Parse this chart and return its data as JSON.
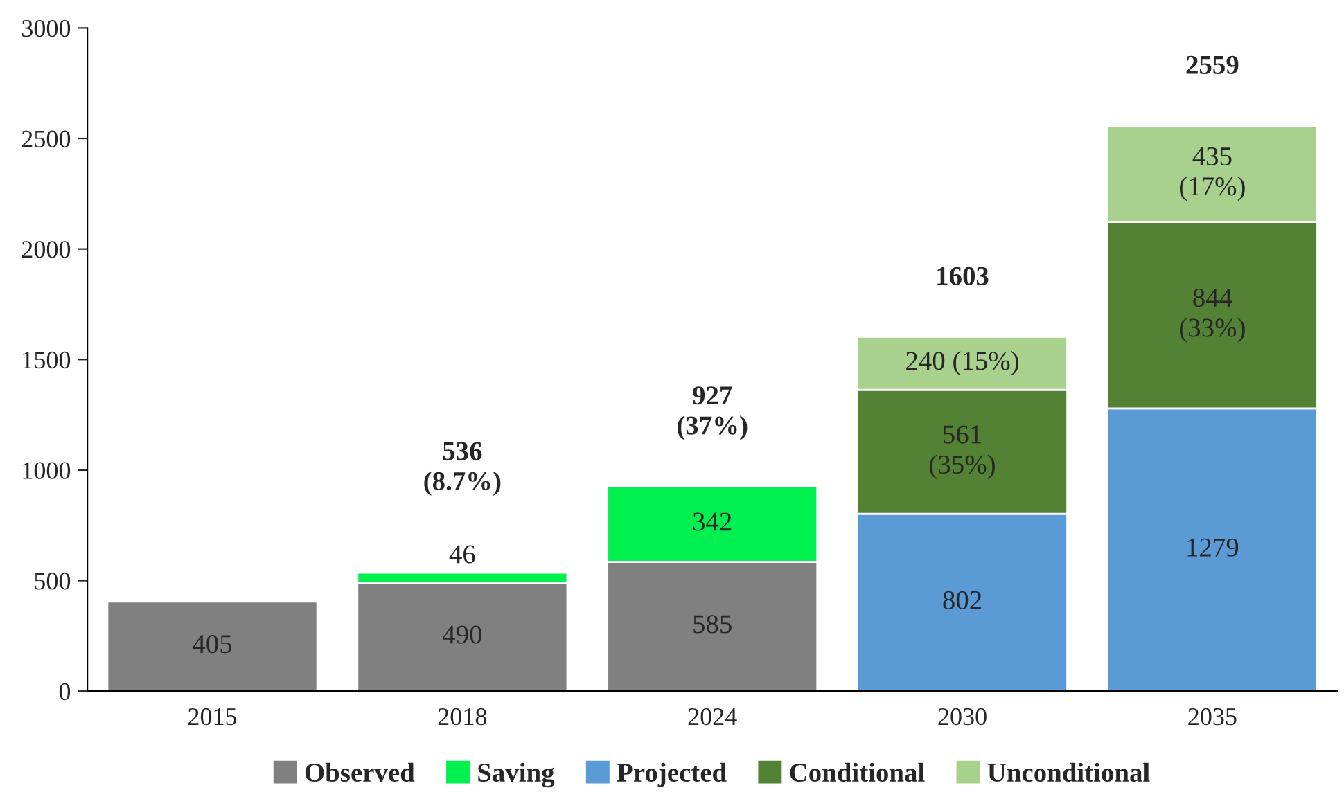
{
  "chart_data": {
    "type": "bar",
    "stacked": true,
    "categories": [
      "2015",
      "2018",
      "2024",
      "2030",
      "2035"
    ],
    "series": [
      {
        "name": "Observed",
        "color": "#808080",
        "values": [
          405,
          490,
          585,
          null,
          null
        ],
        "value_labels": [
          "405",
          "490",
          "585",
          null,
          null
        ]
      },
      {
        "name": "Saving",
        "color": "#00f050",
        "values": [
          null,
          46,
          342,
          null,
          null
        ],
        "value_labels": [
          null,
          "46",
          "342",
          null,
          null
        ]
      },
      {
        "name": "Projected",
        "color": "#5b9bd5",
        "values": [
          null,
          null,
          null,
          802,
          1279
        ],
        "value_labels": [
          null,
          null,
          null,
          "802",
          "1279"
        ]
      },
      {
        "name": "Conditional",
        "color": "#548235",
        "values": [
          null,
          null,
          null,
          561,
          844
        ],
        "value_labels": [
          null,
          null,
          null,
          "561\n(35%)",
          "844\n(33%)"
        ]
      },
      {
        "name": "Unconditional",
        "color": "#a9d18e",
        "values": [
          null,
          null,
          null,
          240,
          435
        ],
        "value_labels": [
          null,
          null,
          null,
          "240 (15%)",
          "435\n(17%)"
        ]
      }
    ],
    "totals": [
      null,
      "536\n(8.7%)",
      "927\n(37%)",
      "1603",
      "2559"
    ],
    "ylim": [
      0,
      3000
    ],
    "yticks": [
      0,
      500,
      1000,
      1500,
      2000,
      2500,
      3000
    ],
    "grid": false,
    "legend": "bottom"
  }
}
